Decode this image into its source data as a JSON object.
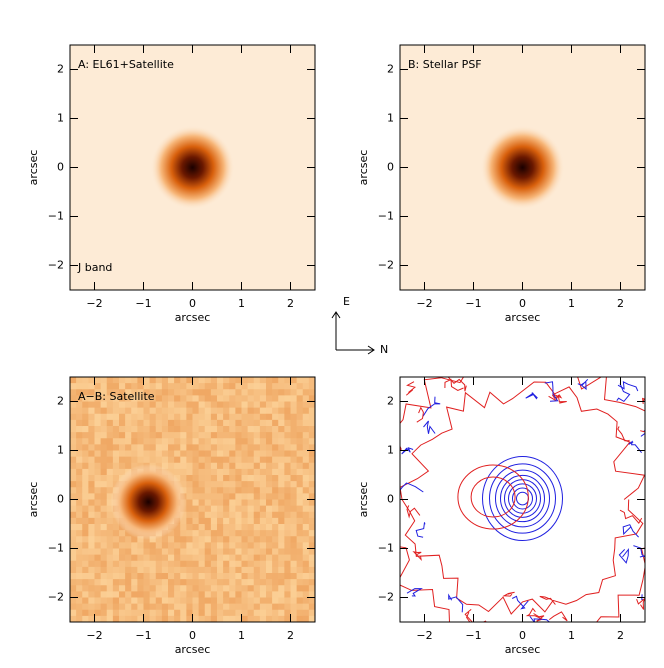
{
  "chart_data": [
    {
      "type": "image",
      "annotations": [
        "A: EL61+Satellite",
        "J band"
      ],
      "xlabel": "arcsec",
      "ylabel": "arcsec",
      "xlim": [
        -2.5,
        2.5
      ],
      "ylim": [
        -2.5,
        2.5
      ],
      "xticks": [
        {
          "value": -2,
          "label": "−2"
        },
        {
          "value": -1,
          "label": "−1"
        },
        0,
        1,
        2
      ],
      "yticks": [
        {
          "value": -2,
          "label": "−2"
        },
        {
          "value": -1,
          "label": "−1"
        },
        0,
        1,
        2
      ]
    },
    {
      "type": "image",
      "annotations": [
        "B: Stellar PSF"
      ],
      "xlabel": "arcsec",
      "ylabel": "arcsec",
      "xlim": [
        -2.5,
        2.5
      ],
      "ylim": [
        -2.5,
        2.5
      ],
      "xticks": [
        {
          "value": -2,
          "label": "−2"
        },
        {
          "value": -1,
          "label": "−1"
        },
        0,
        1,
        2
      ],
      "yticks": [
        {
          "value": -2,
          "label": "−2"
        },
        {
          "value": -1,
          "label": "−1"
        },
        0,
        1,
        2
      ]
    },
    {
      "type": "residual",
      "annotations": [
        "A−B: Satellite"
      ],
      "xlabel": "arcsec",
      "ylabel": "arcsec",
      "xlim": [
        -2.5,
        2.5
      ],
      "ylim": [
        -2.5,
        2.5
      ],
      "xticks": [
        {
          "value": -2,
          "label": "−2"
        },
        {
          "value": -1,
          "label": "−1"
        },
        0,
        1,
        2
      ],
      "yticks": [
        {
          "value": -2,
          "label": "−2"
        },
        {
          "value": -1,
          "label": "−1"
        },
        0,
        1,
        2
      ]
    },
    {
      "type": "contour",
      "annotations": [],
      "xlabel": "arcsec",
      "ylabel": "arcsec",
      "xlim": [
        -2.5,
        2.5
      ],
      "ylim": [
        -2.5,
        2.5
      ],
      "xticks": [
        {
          "value": -2,
          "label": "−2"
        },
        {
          "value": -1,
          "label": "−1"
        },
        0,
        1,
        2
      ],
      "yticks": [
        {
          "value": -2,
          "label": "−2"
        },
        {
          "value": -1,
          "label": "−1"
        },
        0,
        1,
        2
      ]
    }
  ],
  "compass": {
    "east": "E",
    "north": "N"
  }
}
